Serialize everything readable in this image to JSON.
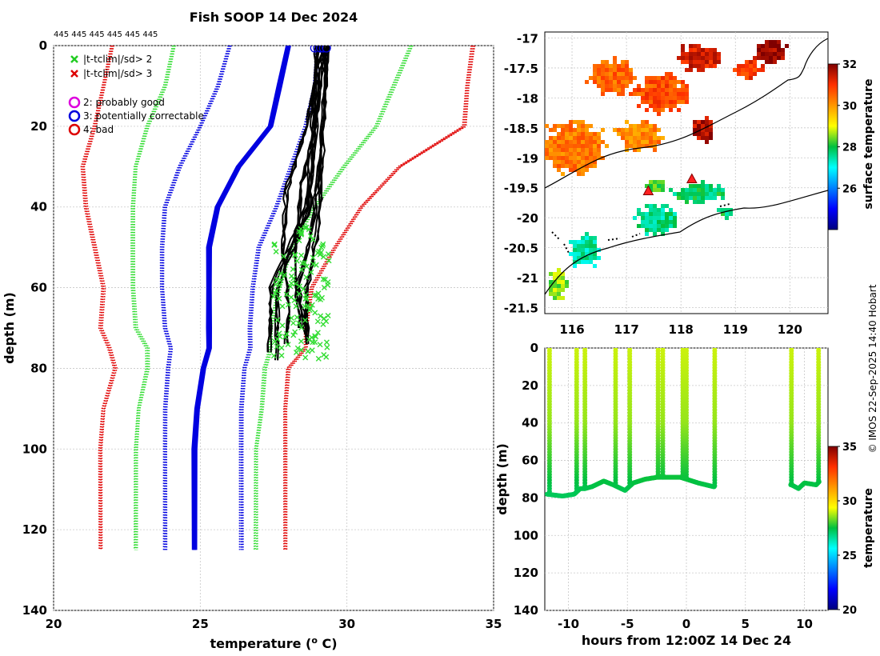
{
  "chart_data": [
    {
      "type": "line",
      "title": "Fish SOOP 14 Dec 2024",
      "xlabel": "temperature (",
      "xlabel_sup": "o",
      "xlabel_tail": " C)",
      "ylabel": "depth (m)",
      "xlim": [
        20,
        35
      ],
      "ylim": [
        0,
        140
      ],
      "xticks": [
        20,
        25,
        30,
        35
      ],
      "yticks": [
        0,
        20,
        40,
        60,
        80,
        100,
        120,
        140
      ],
      "top_labels": "445 445 445 445 445 445",
      "legend": [
        {
          "marker": "x",
          "color": "#22cc22",
          "label": "|t-tclim|/sd> 2"
        },
        {
          "marker": "x",
          "color": "#dd0000",
          "label": "|t-tclim|/sd> 3"
        },
        {
          "marker": "o",
          "color": "#dd00dd",
          "label": "2: probably good"
        },
        {
          "marker": "o",
          "color": "#0000dd",
          "label": "3: potentially correctable"
        },
        {
          "marker": "o",
          "color": "#dd0000",
          "label": "4: bad"
        }
      ],
      "climatology": {
        "depth": [
          0,
          10,
          20,
          30,
          40,
          50,
          60,
          70,
          75,
          80,
          90,
          100,
          125
        ],
        "mean": [
          28.0,
          27.7,
          27.4,
          26.3,
          25.6,
          25.3,
          25.3,
          25.3,
          25.3,
          25.1,
          24.9,
          24.8,
          24.8
        ],
        "plus1sd": [
          29.0,
          28.9,
          28.6,
          28.1,
          27.6,
          27.0,
          26.8,
          26.7,
          26.7,
          26.5,
          26.4,
          26.4,
          26.4
        ],
        "minus1sd": [
          26.0,
          25.6,
          25.0,
          24.3,
          23.8,
          23.7,
          23.7,
          23.8,
          24.0,
          23.9,
          23.8,
          23.8,
          23.8
        ],
        "plus2sd": [
          32.2,
          31.6,
          31.0,
          29.9,
          28.9,
          28.1,
          27.7,
          27.4,
          27.4,
          27.2,
          27.1,
          26.9,
          26.9
        ],
        "minus2sd": [
          24.1,
          23.8,
          23.2,
          22.8,
          22.7,
          22.7,
          22.7,
          22.8,
          23.2,
          23.2,
          22.9,
          22.8,
          22.8
        ],
        "plus3sd": [
          34.3,
          34.1,
          34.0,
          31.8,
          30.5,
          29.6,
          28.8,
          28.6,
          28.6,
          28.0,
          27.9,
          27.9,
          27.9
        ],
        "minus3sd": [
          22.0,
          21.7,
          21.4,
          21.0,
          21.1,
          21.4,
          21.7,
          21.6,
          21.9,
          22.1,
          21.7,
          21.6,
          21.6
        ]
      },
      "profiles": [
        {
          "depth": [
            0,
            20,
            40,
            60,
            77
          ],
          "temp": [
            28.9,
            28.8,
            28.6,
            27.4,
            27.3
          ]
        },
        {
          "depth": [
            0,
            20,
            40,
            60,
            78
          ],
          "temp": [
            29.0,
            28.9,
            28.7,
            27.6,
            27.6
          ]
        },
        {
          "depth": [
            0,
            20,
            36,
            50,
            65,
            75
          ],
          "temp": [
            29.1,
            28.6,
            27.9,
            27.8,
            28.0,
            27.9
          ]
        },
        {
          "depth": [
            0,
            20,
            35,
            55,
            70
          ],
          "temp": [
            29.2,
            28.9,
            28.4,
            28.2,
            28.4
          ]
        },
        {
          "depth": [
            0,
            25,
            45,
            60,
            72
          ],
          "temp": [
            29.3,
            29.1,
            28.8,
            28.3,
            28.6
          ]
        },
        {
          "depth": [
            0,
            30,
            45,
            60,
            74
          ],
          "temp": [
            29.3,
            29.1,
            29.0,
            28.6,
            28.6
          ]
        }
      ],
      "flagged_temp_range": [
        27.5,
        29.4
      ],
      "flagged_depth_range": [
        45,
        78
      ]
    },
    {
      "type": "heatmap",
      "colorbar_label": "surface temperature",
      "xlim": [
        115.5,
        120.7
      ],
      "ylim": [
        -21.6,
        -16.9
      ],
      "xticks": [
        116,
        117,
        118,
        119,
        120
      ],
      "yticks": [
        -17,
        -17.5,
        -18,
        -18.5,
        -19,
        -19.5,
        -20,
        -20.5,
        -21,
        -21.5
      ],
      "clim": [
        24,
        32
      ],
      "colorbar_ticks": [
        26,
        28,
        30,
        32
      ],
      "markers": [
        {
          "lon": 117.4,
          "lat": -19.55
        },
        {
          "lon": 118.2,
          "lat": -19.35
        }
      ]
    },
    {
      "type": "scatter",
      "xlabel": "hours from 12:00Z 14 Dec 24",
      "ylabel": "depth (m)",
      "xlim": [
        -12,
        12
      ],
      "ylim": [
        0,
        140
      ],
      "xticks": [
        -10,
        -5,
        0,
        5,
        10
      ],
      "yticks": [
        0,
        20,
        40,
        60,
        80,
        100,
        120,
        140
      ],
      "colorbar_label": "temperature",
      "clim": [
        20,
        35
      ],
      "colorbar_ticks": [
        20,
        25,
        30,
        35
      ],
      "bottom_track": {
        "hours": [
          -11.8,
          -10.5,
          -9.5,
          -9.0,
          -8.6,
          -8.0,
          -7.0,
          -6.2,
          -5.2,
          -4.5,
          -3.5,
          -2.5,
          -2.2,
          -1.8,
          -0.5,
          0.0,
          1.0,
          2.3,
          8.9,
          9.5,
          10.0,
          11.0,
          11.3
        ],
        "depth": [
          78,
          79,
          78,
          75,
          75,
          74,
          71,
          73,
          76,
          72,
          70,
          69,
          69,
          69,
          69,
          70,
          72,
          74,
          73,
          75,
          72,
          73,
          71
        ]
      },
      "casts_hours": [
        -11.6,
        -9.3,
        -8.6,
        -6.0,
        -4.8,
        -2.4,
        -2.0,
        -0.3,
        0.0,
        2.4,
        8.9,
        11.2
      ]
    }
  ],
  "credit": "© IMOS 22-Sep-2025 14:40 Hobart"
}
